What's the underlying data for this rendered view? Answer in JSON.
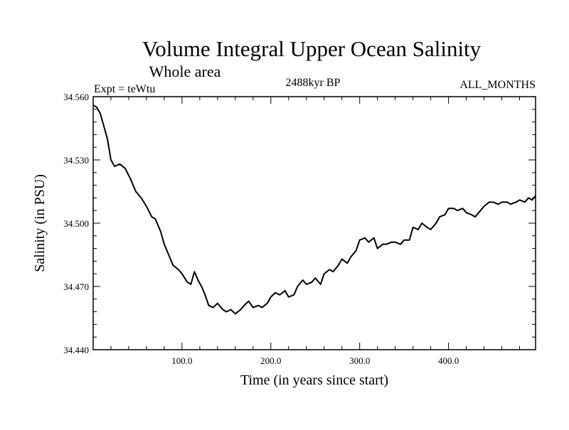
{
  "chart_data": {
    "type": "line",
    "title": "Volume Integral Upper Ocean Salinity",
    "subtitle": "Whole area",
    "annotations": {
      "left": "Expt = teWtu",
      "center": "2488kyr BP",
      "right": "ALL_MONTHS"
    },
    "xlabel": "Time (in years since start)",
    "ylabel": "Salinity (in PSU)",
    "xlim": [
      0,
      498
    ],
    "ylim": [
      34.44,
      34.56
    ],
    "x_ticks": [
      {
        "value": 100,
        "label": "100.0"
      },
      {
        "value": 200,
        "label": "200.0"
      },
      {
        "value": 300,
        "label": "300.0"
      },
      {
        "value": 400,
        "label": "400.0"
      }
    ],
    "y_ticks": [
      {
        "value": 34.56,
        "label": "34.560"
      },
      {
        "value": 34.53,
        "label": "34.530"
      },
      {
        "value": 34.5,
        "label": "34.500"
      },
      {
        "value": 34.47,
        "label": "34.470"
      },
      {
        "value": 34.44,
        "label": "34.440"
      }
    ],
    "x_minor_step": 20,
    "y_minor_step": 0.006,
    "grid": false,
    "series": [
      {
        "name": "Salinity",
        "color": "#000000",
        "x": [
          0,
          4,
          8,
          12,
          16,
          20,
          24,
          30,
          36,
          42,
          48,
          54,
          60,
          66,
          70,
          76,
          80,
          86,
          90,
          96,
          100,
          106,
          110,
          114,
          118,
          122,
          126,
          130,
          135,
          140,
          146,
          150,
          155,
          160,
          166,
          170,
          175,
          180,
          186,
          190,
          196,
          200,
          205,
          210,
          216,
          220,
          226,
          230,
          236,
          240,
          246,
          250,
          256,
          260,
          266,
          270,
          276,
          280,
          286,
          290,
          296,
          300,
          306,
          310,
          316,
          320,
          326,
          330,
          336,
          340,
          346,
          350,
          356,
          360,
          366,
          370,
          376,
          380,
          386,
          390,
          396,
          400,
          406,
          410,
          416,
          420,
          426,
          430,
          436,
          440,
          446,
          450,
          456,
          460,
          466,
          470,
          476,
          480,
          486,
          490,
          494,
          498
        ],
        "values": [
          34.556,
          34.555,
          34.552,
          34.546,
          34.54,
          34.53,
          34.527,
          34.528,
          34.526,
          34.521,
          34.515,
          34.512,
          34.508,
          34.503,
          34.502,
          34.496,
          34.49,
          34.484,
          34.48,
          34.478,
          34.476,
          34.472,
          34.471,
          34.477,
          34.473,
          34.47,
          34.466,
          34.461,
          34.46,
          34.462,
          34.459,
          34.458,
          34.459,
          34.457,
          34.459,
          34.461,
          34.463,
          34.46,
          34.461,
          34.46,
          34.462,
          34.465,
          34.467,
          34.466,
          34.468,
          34.465,
          34.466,
          34.47,
          34.473,
          34.471,
          34.472,
          34.474,
          34.471,
          34.476,
          34.478,
          34.477,
          34.48,
          34.483,
          34.481,
          34.484,
          34.487,
          34.492,
          34.493,
          34.491,
          34.493,
          34.488,
          34.49,
          34.49,
          34.491,
          34.491,
          34.49,
          34.492,
          34.492,
          34.498,
          34.497,
          34.5,
          34.498,
          34.497,
          34.5,
          34.503,
          34.504,
          34.507,
          34.507,
          34.506,
          34.507,
          34.505,
          34.504,
          34.503,
          34.506,
          34.508,
          34.51,
          34.51,
          34.509,
          34.51,
          34.51,
          34.509,
          34.51,
          34.511,
          34.51,
          34.512,
          34.511,
          34.513
        ]
      }
    ]
  }
}
